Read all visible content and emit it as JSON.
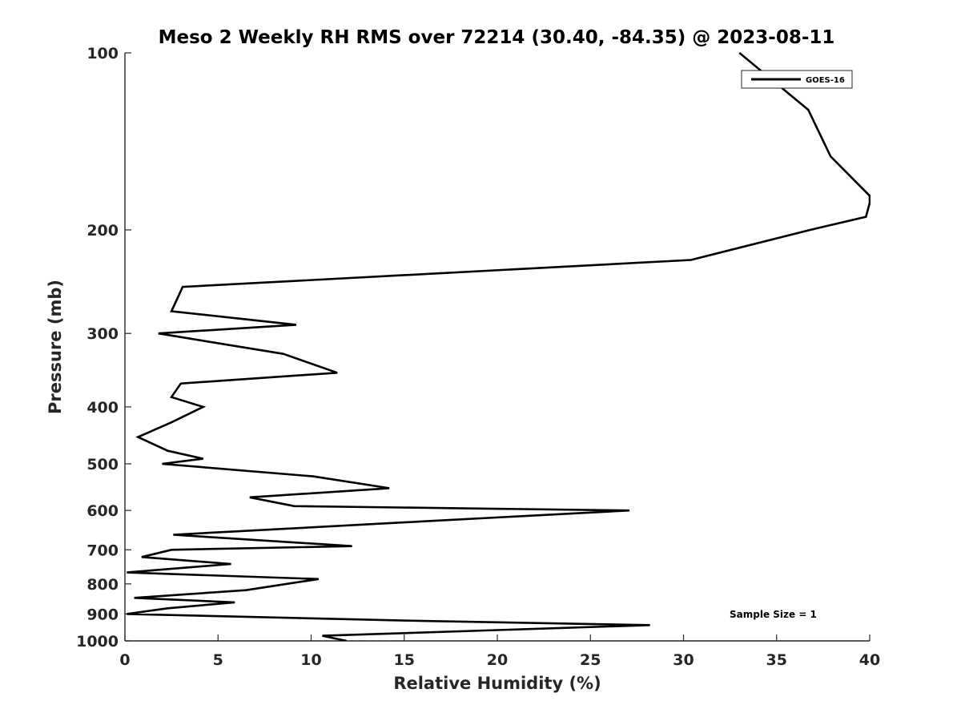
{
  "chart_data": {
    "type": "line",
    "title": "Meso 2 Weekly RH RMS over 72214 (30.40, -84.35) @ 2023-08-11",
    "xlabel": "Relative Humidity (%)",
    "ylabel": "Pressure (mb)",
    "xlim": [
      0,
      40
    ],
    "ylim": [
      100,
      1000
    ],
    "y_scale": "log",
    "y_reversed": true,
    "x_ticks": [
      0,
      5,
      10,
      15,
      20,
      25,
      30,
      35,
      40
    ],
    "x_tick_labels": [
      "0",
      "5",
      "10",
      "15",
      "20",
      "25",
      "30",
      "35",
      "40"
    ],
    "y_ticks": [
      100,
      200,
      300,
      400,
      500,
      600,
      700,
      800,
      900,
      1000
    ],
    "y_tick_labels": [
      "100",
      "200",
      "300",
      "400",
      "500",
      "600",
      "700",
      "800",
      "900",
      "1000"
    ],
    "grid": false,
    "legend_position": "top-right",
    "annotation": "Sample Size = 1",
    "series": [
      {
        "name": "GOES-16",
        "color": "#000000",
        "x": [
          33.0,
          36.7,
          37.9,
          40.0,
          40.0,
          39.8,
          36.8,
          30.4,
          3.1,
          2.5,
          9.2,
          1.8,
          8.5,
          11.4,
          3.0,
          2.5,
          4.2,
          2.5,
          0.7,
          2.3,
          4.2,
          2.0,
          10.1,
          14.2,
          6.7,
          9.1,
          27.1,
          16.5,
          2.6,
          12.2,
          2.5,
          0.9,
          5.7,
          0.1,
          10.4,
          6.5,
          0.5,
          5.9,
          2.3,
          0.1,
          16.0,
          28.2,
          10.6,
          11.9
        ],
        "y": [
          100,
          125,
          150,
          175,
          180,
          190,
          200,
          225,
          250,
          275,
          290,
          300,
          325,
          350,
          365,
          385,
          400,
          425,
          450,
          475,
          490,
          500,
          525,
          550,
          570,
          590,
          600,
          625,
          660,
          690,
          700,
          720,
          740,
          765,
          785,
          820,
          845,
          860,
          880,
          900,
          925,
          940,
          980,
          1000
        ]
      }
    ]
  }
}
